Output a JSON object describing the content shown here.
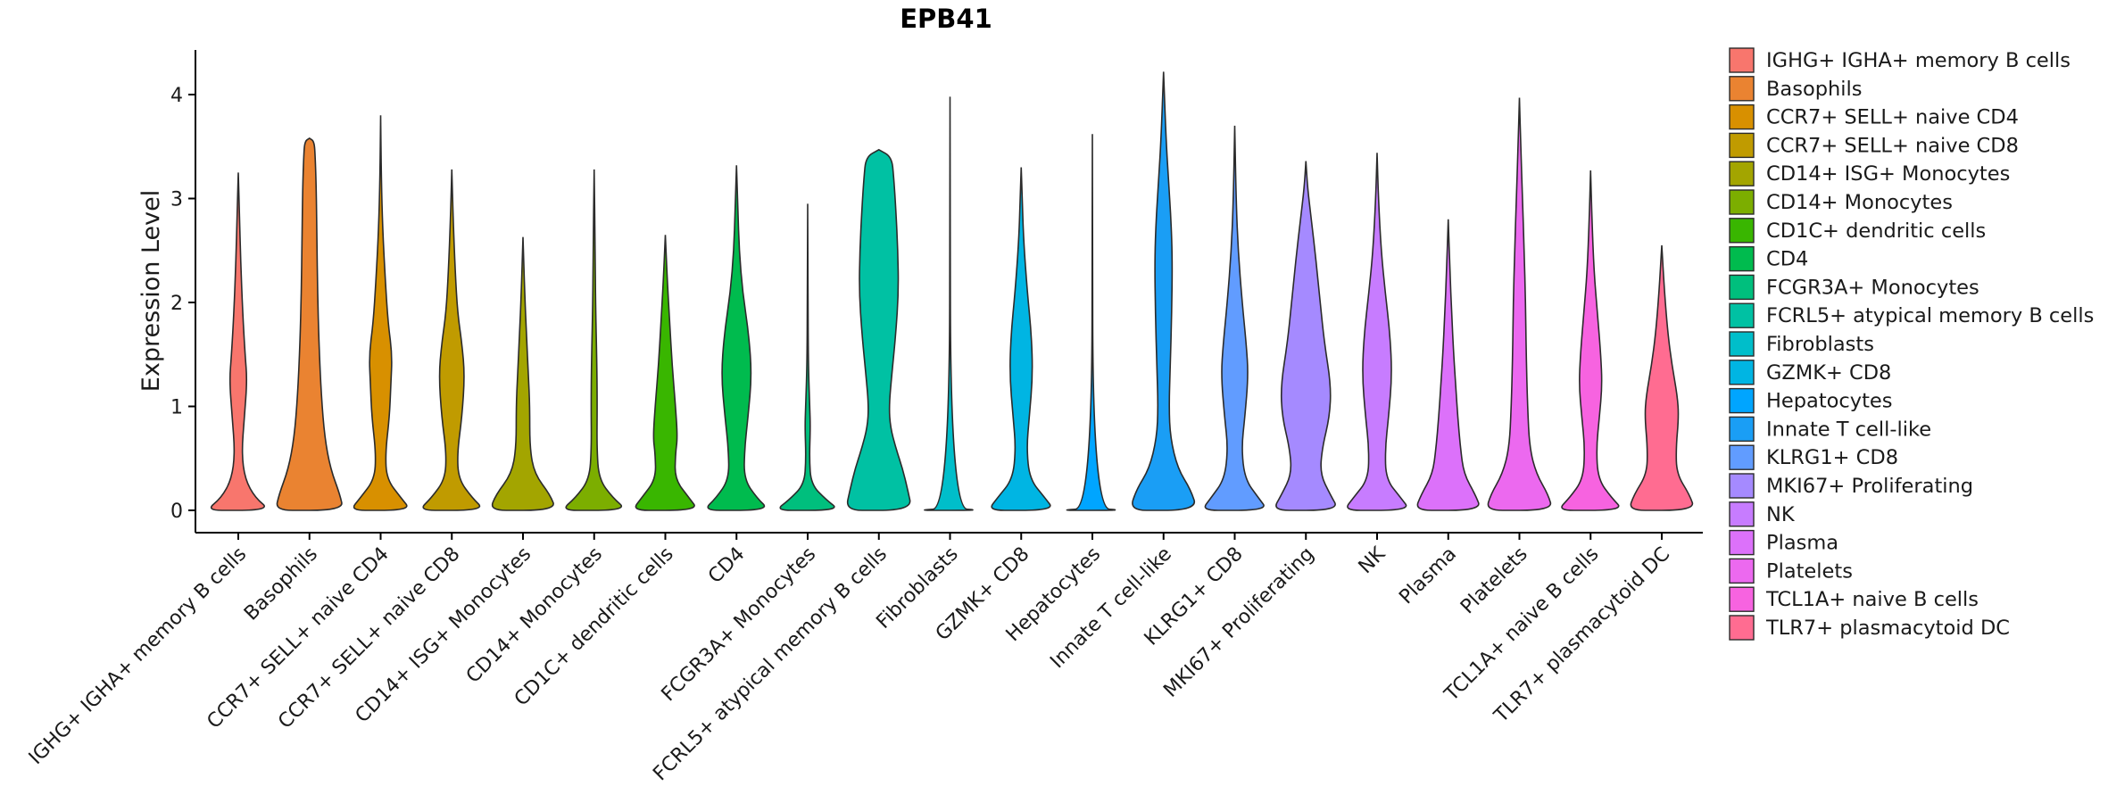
{
  "chart_data": {
    "type": "violin",
    "title": "EPB41",
    "xlabel": "",
    "ylabel": "Expression Level",
    "ylim": [
      -0.2,
      4.4
    ],
    "yticks": [
      0,
      1,
      2,
      3,
      4
    ],
    "grid": false,
    "legend_position": "right",
    "series": [
      {
        "name": "IGHG+ IGHA+ memory B cells",
        "color": "#F8766D",
        "max": 3.25,
        "density": [
          [
            0,
            0.95
          ],
          [
            0.12,
            0.5
          ],
          [
            0.3,
            0.2
          ],
          [
            0.55,
            0.1
          ],
          [
            0.9,
            0.18
          ],
          [
            1.25,
            0.26
          ],
          [
            1.5,
            0.2
          ],
          [
            1.9,
            0.13
          ],
          [
            2.4,
            0.07
          ],
          [
            2.9,
            0.03
          ],
          [
            3.25,
            0
          ]
        ]
      },
      {
        "name": "Basophils",
        "color": "#EA8331",
        "max": 3.58,
        "density": [
          [
            0,
            1.0
          ],
          [
            0.15,
            0.9
          ],
          [
            0.4,
            0.62
          ],
          [
            0.7,
            0.45
          ],
          [
            1.1,
            0.35
          ],
          [
            1.6,
            0.28
          ],
          [
            2.1,
            0.24
          ],
          [
            2.6,
            0.22
          ],
          [
            3.1,
            0.2
          ],
          [
            3.4,
            0.17
          ],
          [
            3.55,
            0.14
          ],
          [
            3.58,
            0
          ]
        ]
      },
      {
        "name": "CCR7+ SELL+ naive CD4",
        "color": "#D89000",
        "max": 3.8,
        "density": [
          [
            0,
            0.9
          ],
          [
            0.12,
            0.6
          ],
          [
            0.3,
            0.18
          ],
          [
            0.55,
            0.14
          ],
          [
            0.9,
            0.26
          ],
          [
            1.2,
            0.3
          ],
          [
            1.5,
            0.34
          ],
          [
            1.8,
            0.22
          ],
          [
            2.2,
            0.14
          ],
          [
            2.7,
            0.06
          ],
          [
            3.2,
            0.02
          ],
          [
            3.8,
            0
          ]
        ]
      },
      {
        "name": "CCR7+ SELL+ naive CD8",
        "color": "#C09B00",
        "max": 3.28,
        "density": [
          [
            0,
            0.98
          ],
          [
            0.12,
            0.6
          ],
          [
            0.3,
            0.2
          ],
          [
            0.55,
            0.16
          ],
          [
            0.9,
            0.3
          ],
          [
            1.3,
            0.38
          ],
          [
            1.6,
            0.3
          ],
          [
            1.9,
            0.17
          ],
          [
            2.3,
            0.1
          ],
          [
            2.8,
            0.04
          ],
          [
            3.28,
            0
          ]
        ]
      },
      {
        "name": "CD14+ ISG+ Monocytes",
        "color": "#A3A500",
        "max": 2.63,
        "density": [
          [
            0,
            0.98
          ],
          [
            0.15,
            0.8
          ],
          [
            0.35,
            0.34
          ],
          [
            0.6,
            0.2
          ],
          [
            1.0,
            0.2
          ],
          [
            1.3,
            0.16
          ],
          [
            1.7,
            0.1
          ],
          [
            2.1,
            0.05
          ],
          [
            2.63,
            0
          ]
        ]
      },
      {
        "name": "CD14+ Monocytes",
        "color": "#7CAE00",
        "max": 3.28,
        "density": [
          [
            0,
            0.98
          ],
          [
            0.12,
            0.55
          ],
          [
            0.3,
            0.14
          ],
          [
            0.6,
            0.08
          ],
          [
            1.0,
            0.09
          ],
          [
            1.4,
            0.08
          ],
          [
            2.0,
            0.04
          ],
          [
            2.5,
            0.03
          ],
          [
            3.28,
            0
          ]
        ]
      },
      {
        "name": "CD1C+ dendritic cells",
        "color": "#39B600",
        "max": 2.65,
        "density": [
          [
            0,
            0.98
          ],
          [
            0.12,
            0.7
          ],
          [
            0.3,
            0.28
          ],
          [
            0.55,
            0.3
          ],
          [
            0.7,
            0.36
          ],
          [
            1.0,
            0.3
          ],
          [
            1.4,
            0.2
          ],
          [
            1.8,
            0.13
          ],
          [
            2.2,
            0.06
          ],
          [
            2.65,
            0
          ]
        ]
      },
      {
        "name": "CD4",
        "color": "#00BB4E",
        "max": 3.32,
        "density": [
          [
            0,
            0.98
          ],
          [
            0.12,
            0.6
          ],
          [
            0.3,
            0.22
          ],
          [
            0.6,
            0.24
          ],
          [
            0.9,
            0.34
          ],
          [
            1.3,
            0.45
          ],
          [
            1.7,
            0.36
          ],
          [
            2.1,
            0.18
          ],
          [
            2.5,
            0.08
          ],
          [
            2.9,
            0.04
          ],
          [
            3.32,
            0
          ]
        ]
      },
      {
        "name": "FCGR3A+ Monocytes",
        "color": "#00BF7D",
        "max": 2.95,
        "density": [
          [
            0,
            0.95
          ],
          [
            0.1,
            0.55
          ],
          [
            0.25,
            0.1
          ],
          [
            0.5,
            0.05
          ],
          [
            0.8,
            0.08
          ],
          [
            1.0,
            0.06
          ],
          [
            1.4,
            0.02
          ],
          [
            2.0,
            0.01
          ],
          [
            2.95,
            0
          ]
        ]
      },
      {
        "name": "FCRL5+ atypical memory B cells",
        "color": "#00C1A3",
        "max": 3.47,
        "density": [
          [
            0,
            0.98
          ],
          [
            0.2,
            0.85
          ],
          [
            0.4,
            0.7
          ],
          [
            0.6,
            0.5
          ],
          [
            0.8,
            0.34
          ],
          [
            1.0,
            0.3
          ],
          [
            1.3,
            0.38
          ],
          [
            1.7,
            0.5
          ],
          [
            2.1,
            0.58
          ],
          [
            2.5,
            0.56
          ],
          [
            2.9,
            0.5
          ],
          [
            3.2,
            0.44
          ],
          [
            3.4,
            0.38
          ],
          [
            3.47,
            0
          ]
        ]
      },
      {
        "name": "Fibroblasts",
        "color": "#00BECA",
        "max": 3.98,
        "density": [
          [
            0,
            1.0
          ],
          [
            0.02,
            0.02
          ],
          [
            3.98,
            0
          ]
        ]
      },
      {
        "name": "GZMK+ CD8",
        "color": "#00B5E3",
        "max": 3.3,
        "density": [
          [
            0,
            0.98
          ],
          [
            0.12,
            0.7
          ],
          [
            0.3,
            0.25
          ],
          [
            0.6,
            0.16
          ],
          [
            0.9,
            0.24
          ],
          [
            1.3,
            0.34
          ],
          [
            1.7,
            0.3
          ],
          [
            2.1,
            0.18
          ],
          [
            2.6,
            0.07
          ],
          [
            3.0,
            0.03
          ],
          [
            3.3,
            0
          ]
        ]
      },
      {
        "name": "Hepatocytes",
        "color": "#00A5FF",
        "max": 3.62,
        "density": [
          [
            0,
            1.0
          ],
          [
            0.02,
            0.02
          ],
          [
            3.62,
            0
          ]
        ]
      },
      {
        "name": "Innate T cell-like",
        "color": "#1A9EF5",
        "max": 4.22,
        "density": [
          [
            0,
            1.0
          ],
          [
            0.2,
            0.8
          ],
          [
            0.4,
            0.42
          ],
          [
            0.7,
            0.2
          ],
          [
            1.0,
            0.16
          ],
          [
            1.4,
            0.2
          ],
          [
            1.9,
            0.24
          ],
          [
            2.4,
            0.26
          ],
          [
            2.8,
            0.22
          ],
          [
            3.2,
            0.14
          ],
          [
            3.6,
            0.07
          ],
          [
            4.22,
            0
          ]
        ]
      },
      {
        "name": "KLRG1+ CD8",
        "color": "#619CFF",
        "max": 3.7,
        "density": [
          [
            0,
            0.98
          ],
          [
            0.12,
            0.7
          ],
          [
            0.3,
            0.3
          ],
          [
            0.6,
            0.2
          ],
          [
            0.9,
            0.3
          ],
          [
            1.3,
            0.4
          ],
          [
            1.6,
            0.34
          ],
          [
            2.0,
            0.22
          ],
          [
            2.5,
            0.1
          ],
          [
            3.0,
            0.04
          ],
          [
            3.7,
            0
          ]
        ]
      },
      {
        "name": "MKI67+ Proliferating",
        "color": "#A58AFF",
        "max": 3.36,
        "density": [
          [
            0,
            0.98
          ],
          [
            0.15,
            0.72
          ],
          [
            0.35,
            0.42
          ],
          [
            0.6,
            0.48
          ],
          [
            0.9,
            0.7
          ],
          [
            1.2,
            0.74
          ],
          [
            1.6,
            0.55
          ],
          [
            2.0,
            0.42
          ],
          [
            2.4,
            0.3
          ],
          [
            2.8,
            0.16
          ],
          [
            3.1,
            0.05
          ],
          [
            3.36,
            0
          ]
        ]
      },
      {
        "name": "NK",
        "color": "#C77CFF",
        "max": 3.44,
        "density": [
          [
            0,
            0.98
          ],
          [
            0.12,
            0.7
          ],
          [
            0.3,
            0.26
          ],
          [
            0.6,
            0.24
          ],
          [
            0.9,
            0.34
          ],
          [
            1.3,
            0.44
          ],
          [
            1.7,
            0.38
          ],
          [
            2.1,
            0.24
          ],
          [
            2.5,
            0.12
          ],
          [
            3.0,
            0.04
          ],
          [
            3.44,
            0
          ]
        ]
      },
      {
        "name": "Plasma",
        "color": "#DC71FA",
        "max": 2.8,
        "density": [
          [
            0,
            0.98
          ],
          [
            0.15,
            0.8
          ],
          [
            0.35,
            0.46
          ],
          [
            0.6,
            0.36
          ],
          [
            0.9,
            0.28
          ],
          [
            1.2,
            0.22
          ],
          [
            1.5,
            0.16
          ],
          [
            1.9,
            0.1
          ],
          [
            2.3,
            0.05
          ],
          [
            2.8,
            0
          ]
        ]
      },
      {
        "name": "Platelets",
        "color": "#EC69EF",
        "max": 3.97,
        "density": [
          [
            0,
            0.98
          ],
          [
            0.15,
            0.85
          ],
          [
            0.35,
            0.5
          ],
          [
            0.6,
            0.3
          ],
          [
            1.0,
            0.24
          ],
          [
            1.5,
            0.2
          ],
          [
            2.0,
            0.18
          ],
          [
            2.5,
            0.14
          ],
          [
            3.0,
            0.09
          ],
          [
            3.5,
            0.04
          ],
          [
            3.97,
            0
          ]
        ]
      },
      {
        "name": "TCL1A+ naive B cells",
        "color": "#F763E0",
        "max": 3.27,
        "density": [
          [
            0,
            0.98
          ],
          [
            0.12,
            0.62
          ],
          [
            0.3,
            0.22
          ],
          [
            0.6,
            0.17
          ],
          [
            0.9,
            0.26
          ],
          [
            1.2,
            0.34
          ],
          [
            1.5,
            0.3
          ],
          [
            1.9,
            0.2
          ],
          [
            2.3,
            0.1
          ],
          [
            2.8,
            0.04
          ],
          [
            3.27,
            0
          ]
        ]
      },
      {
        "name": "TLR7+ plasmacytoid DC",
        "color": "#FF6C91",
        "max": 2.55,
        "density": [
          [
            0,
            0.98
          ],
          [
            0.15,
            0.82
          ],
          [
            0.35,
            0.44
          ],
          [
            0.6,
            0.42
          ],
          [
            0.9,
            0.5
          ],
          [
            1.1,
            0.46
          ],
          [
            1.4,
            0.3
          ],
          [
            1.7,
            0.18
          ],
          [
            2.1,
            0.08
          ],
          [
            2.55,
            0
          ]
        ]
      }
    ]
  }
}
